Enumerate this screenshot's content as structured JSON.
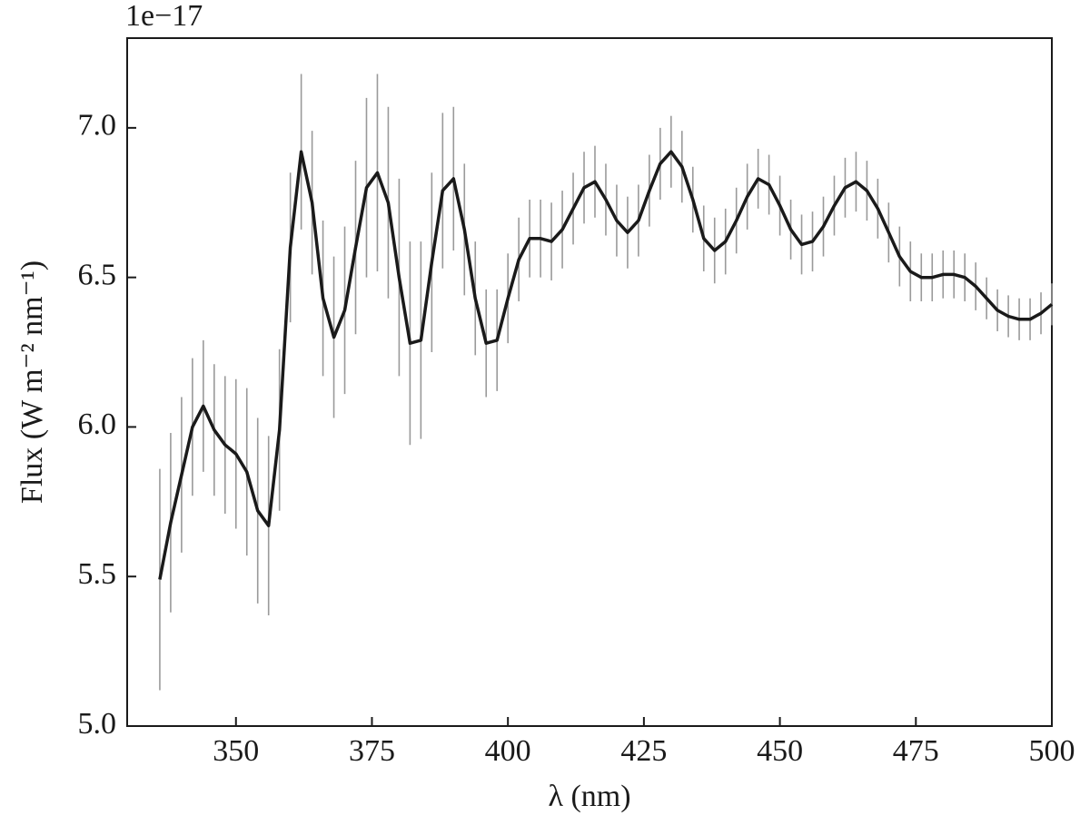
{
  "chart_data": {
    "type": "line",
    "offset_text": "1e−17",
    "xlabel": "λ (nm)",
    "ylabel": "Flux (W m⁻² nm⁻¹)",
    "color": "#1a1a1a",
    "error_color": "#9a9a9a",
    "x": [
      336,
      338,
      340,
      342,
      344,
      346,
      348,
      350,
      352,
      354,
      356,
      358,
      360,
      362,
      364,
      366,
      368,
      370,
      372,
      374,
      376,
      378,
      380,
      382,
      384,
      386,
      388,
      390,
      392,
      394,
      396,
      398,
      400,
      402,
      404,
      406,
      408,
      410,
      412,
      414,
      416,
      418,
      420,
      422,
      424,
      426,
      428,
      430,
      432,
      434,
      436,
      438,
      440,
      442,
      444,
      446,
      448,
      450,
      452,
      454,
      456,
      458,
      460,
      462,
      464,
      466,
      468,
      470,
      472,
      474,
      476,
      478,
      480,
      482,
      484,
      486,
      488,
      490,
      492,
      494,
      496,
      498,
      500
    ],
    "values": [
      5.49,
      5.68,
      5.84,
      6.0,
      6.07,
      5.99,
      5.94,
      5.91,
      5.85,
      5.72,
      5.67,
      5.99,
      6.6,
      6.92,
      6.75,
      6.43,
      6.3,
      6.39,
      6.6,
      6.8,
      6.85,
      6.75,
      6.5,
      6.28,
      6.29,
      6.55,
      6.79,
      6.83,
      6.66,
      6.43,
      6.28,
      6.29,
      6.43,
      6.56,
      6.63,
      6.63,
      6.62,
      6.66,
      6.73,
      6.8,
      6.82,
      6.76,
      6.69,
      6.65,
      6.69,
      6.79,
      6.88,
      6.92,
      6.87,
      6.76,
      6.63,
      6.59,
      6.62,
      6.69,
      6.77,
      6.83,
      6.81,
      6.74,
      6.66,
      6.61,
      6.62,
      6.67,
      6.74,
      6.8,
      6.82,
      6.79,
      6.73,
      6.65,
      6.57,
      6.52,
      6.5,
      6.5,
      6.51,
      6.51,
      6.5,
      6.47,
      6.43,
      6.39,
      6.37,
      6.36,
      6.36,
      6.38,
      6.41
    ],
    "errors": [
      0.37,
      0.3,
      0.26,
      0.23,
      0.22,
      0.22,
      0.23,
      0.25,
      0.28,
      0.31,
      0.3,
      0.27,
      0.25,
      0.26,
      0.24,
      0.26,
      0.27,
      0.28,
      0.29,
      0.3,
      0.33,
      0.32,
      0.33,
      0.34,
      0.33,
      0.3,
      0.26,
      0.24,
      0.22,
      0.19,
      0.18,
      0.17,
      0.15,
      0.14,
      0.13,
      0.13,
      0.13,
      0.13,
      0.12,
      0.12,
      0.12,
      0.12,
      0.12,
      0.12,
      0.12,
      0.12,
      0.12,
      0.12,
      0.12,
      0.11,
      0.11,
      0.11,
      0.11,
      0.11,
      0.11,
      0.1,
      0.1,
      0.1,
      0.1,
      0.1,
      0.1,
      0.1,
      0.1,
      0.1,
      0.1,
      0.1,
      0.1,
      0.1,
      0.1,
      0.1,
      0.08,
      0.08,
      0.08,
      0.08,
      0.08,
      0.08,
      0.07,
      0.07,
      0.07,
      0.07,
      0.07,
      0.07,
      0.07
    ],
    "xlim": [
      330,
      500
    ],
    "ylim": [
      5.0,
      7.3
    ],
    "xticks": [
      350,
      375,
      400,
      425,
      450,
      475,
      500
    ],
    "yticks": [
      {
        "value": 5,
        "label": "5.0"
      },
      {
        "value": 5.5,
        "label": "5.5"
      },
      {
        "value": 6,
        "label": "6.0"
      },
      {
        "value": 6.5,
        "label": "6.5"
      },
      {
        "value": 7,
        "label": "7.0"
      }
    ]
  }
}
